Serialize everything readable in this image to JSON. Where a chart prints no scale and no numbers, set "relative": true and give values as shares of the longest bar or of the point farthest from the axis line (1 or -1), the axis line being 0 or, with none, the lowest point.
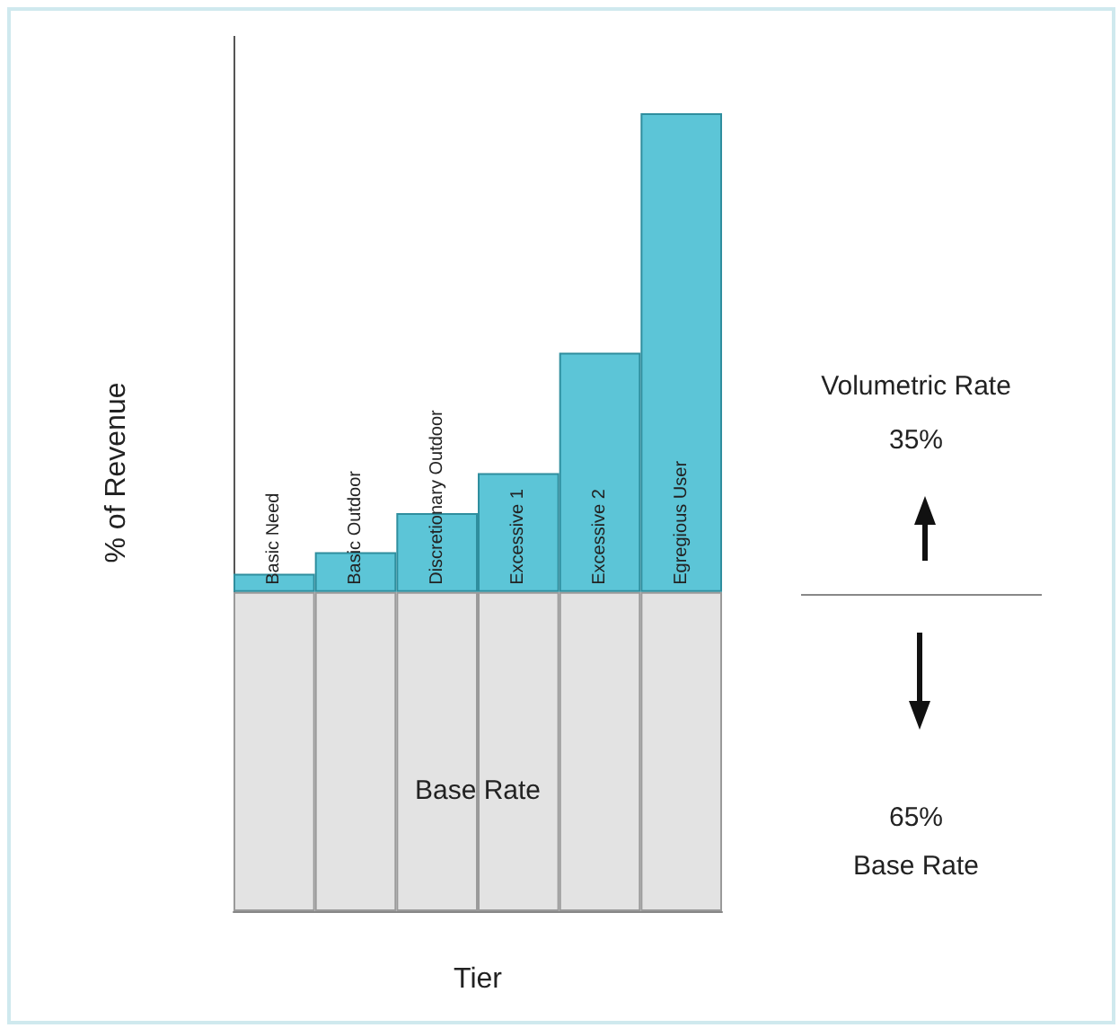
{
  "chart_data": {
    "type": "bar",
    "relative": true,
    "stacked": true,
    "tick_labels": false,
    "xlabel": "Tier",
    "ylabel": "% of Revenue",
    "categories": [
      "Basic Need",
      "Basic Outdoor",
      "Discretionary Outdoor",
      "Excessive 1",
      "Excessive 2",
      "Egregious User"
    ],
    "series": [
      {
        "color": "#e3e3e3",
        "values": [
          0.4,
          0.4,
          0.4,
          0.4,
          0.4,
          0.4
        ]
      },
      {
        "color": "#5cc5d7",
        "values": [
          0.023,
          0.05,
          0.099,
          0.149,
          0.3,
          0.6
        ]
      }
    ],
    "annotations": [
      "Base Rate",
      "Volumetric Rate",
      "35%",
      "65%",
      "Base Rate"
    ]
  }
}
